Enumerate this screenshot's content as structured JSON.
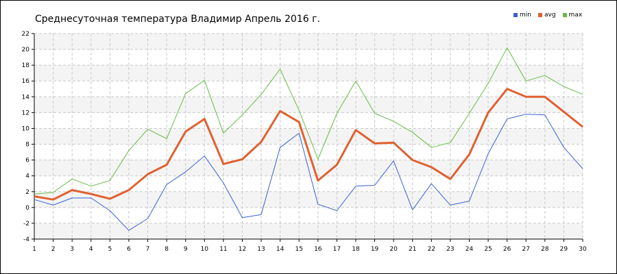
{
  "chart_data": {
    "type": "line",
    "title": "Среднесуточная температура Владимир  Апрель 2016 г.",
    "xlabel": "",
    "ylabel": "",
    "x": [
      1,
      2,
      3,
      4,
      5,
      6,
      7,
      8,
      9,
      10,
      11,
      12,
      13,
      14,
      15,
      16,
      17,
      18,
      19,
      20,
      21,
      22,
      23,
      24,
      25,
      26,
      27,
      28,
      29,
      30
    ],
    "xlim": [
      1,
      30
    ],
    "ylim": [
      -4,
      22
    ],
    "y_ticks": [
      -4,
      -2,
      0,
      2,
      4,
      6,
      8,
      10,
      12,
      14,
      16,
      18,
      20,
      22
    ],
    "grid": true,
    "legend_position": "top-right",
    "series": [
      {
        "name": "min",
        "color": "#3a5fd9",
        "values": [
          1.0,
          0.3,
          1.2,
          1.2,
          -0.4,
          -2.9,
          -1.4,
          2.9,
          4.5,
          6.5,
          3.1,
          -1.3,
          -0.9,
          7.6,
          9.4,
          0.4,
          -0.4,
          2.7,
          2.8,
          5.9,
          -0.3,
          3.0,
          0.3,
          0.8,
          6.8,
          11.2,
          11.8,
          11.7,
          7.6,
          4.9
        ]
      },
      {
        "name": "avg",
        "color": "#e06030",
        "values": [
          1.4,
          1.0,
          2.2,
          1.7,
          1.1,
          2.2,
          4.2,
          5.4,
          9.6,
          11.2,
          5.5,
          6.1,
          8.3,
          12.2,
          10.8,
          3.4,
          5.4,
          9.8,
          8.1,
          8.2,
          6.0,
          5.1,
          3.6,
          6.7,
          12.0,
          15.0,
          14.0,
          14.0,
          12.1,
          10.2
        ]
      },
      {
        "name": "max",
        "color": "#66bb44",
        "values": [
          1.7,
          1.9,
          3.6,
          2.7,
          3.4,
          7.2,
          9.9,
          8.7,
          14.4,
          16.1,
          9.4,
          11.7,
          14.3,
          17.5,
          12.3,
          6.1,
          11.9,
          16.0,
          11.9,
          10.9,
          9.5,
          7.6,
          8.2,
          11.9,
          15.7,
          20.2,
          16.0,
          16.7,
          15.3,
          14.3
        ]
      }
    ]
  }
}
